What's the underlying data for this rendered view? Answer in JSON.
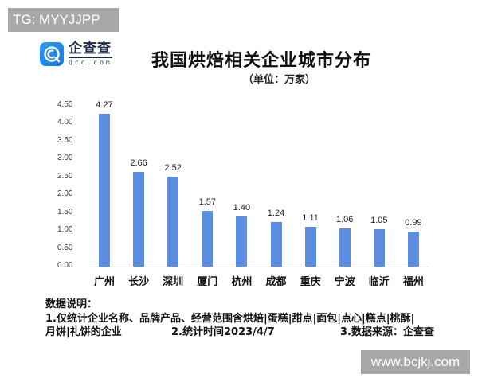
{
  "watermarks": {
    "top": "TG: MYYJJPP",
    "bottom": "www.bcjkj.com"
  },
  "logo": {
    "name_cn": "企查查",
    "name_en": "Qcc.com",
    "icon": "qcc-logo-icon",
    "color": "#1f86ea"
  },
  "header": {
    "title": "我国烘焙相关企业城市分布",
    "subtitle": "（单位：万家）"
  },
  "chart_data": {
    "type": "bar",
    "title": "我国烘焙相关企业城市分布",
    "subtitle": "（单位：万家）",
    "xlabel": "",
    "ylabel": "",
    "unit": "万家",
    "categories": [
      "广州",
      "长沙",
      "深圳",
      "厦门",
      "杭州",
      "成都",
      "重庆",
      "宁波",
      "临沂",
      "福州"
    ],
    "values": [
      4.27,
      2.66,
      2.52,
      1.57,
      1.4,
      1.24,
      1.11,
      1.06,
      1.05,
      0.99
    ],
    "value_labels": [
      "4.27",
      "2.66",
      "2.52",
      "1.57",
      "1.40",
      "1.24",
      "1.11",
      "1.06",
      "1.05",
      "0.99"
    ],
    "yticks": [
      "0.00",
      "0.50",
      "1.00",
      "1.50",
      "2.00",
      "2.50",
      "3.00",
      "3.50",
      "4.00",
      "4.50"
    ],
    "ylim": [
      0,
      4.5
    ],
    "grid": false,
    "legend": null,
    "bar_color": "#5b8ee0"
  },
  "notes": {
    "heading": "数据说明：",
    "line1": "1.仅统计企业名称、品牌产品、经营范围含烘焙|蛋糕|甜点|面包|点心|糕点|桃酥|",
    "line2a": "月饼|礼饼的企业",
    "line2b": "2.统计时间2023/4/7",
    "line2c": "3.数据来源：企查查"
  }
}
